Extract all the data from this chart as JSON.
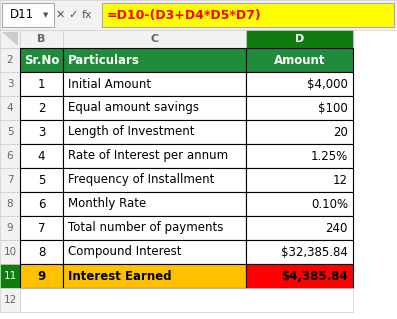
{
  "formula_bar_cell": "D11",
  "formula_bar_formula": "=D10-(D3+D4*D5*D7)",
  "header_row": [
    "Sr.No",
    "Particulars",
    "Amount"
  ],
  "rows": [
    [
      "1",
      "Initial Amount",
      "$4,000"
    ],
    [
      "2",
      "Equal amount savings",
      "$100"
    ],
    [
      "3",
      "Length of Investment",
      "20"
    ],
    [
      "4",
      "Rate of Interest per annum",
      "1.25%"
    ],
    [
      "5",
      "Frequency of Installment",
      "12"
    ],
    [
      "6",
      "Monthly Rate",
      "0.10%"
    ],
    [
      "7",
      "Total number of payments",
      "240"
    ],
    [
      "8",
      "Compound Interest",
      "$32,385.84"
    ],
    [
      "9",
      "Interest Earned",
      "$4,385.84"
    ]
  ],
  "header_bg": "#1E8C3A",
  "header_text": "#FFFFFF",
  "last_row_bg": "#FFC000",
  "last_row_text": "#000000",
  "last_row_d_bg": "#FF0000",
  "last_row_d_text": "#000000",
  "formula_bar_bg": "#FFFF00",
  "formula_bar_text": "#FF0000",
  "normal_bg": "#FFFFFF",
  "normal_text": "#000000",
  "toolbar_bg": "#F2F2F2"
}
